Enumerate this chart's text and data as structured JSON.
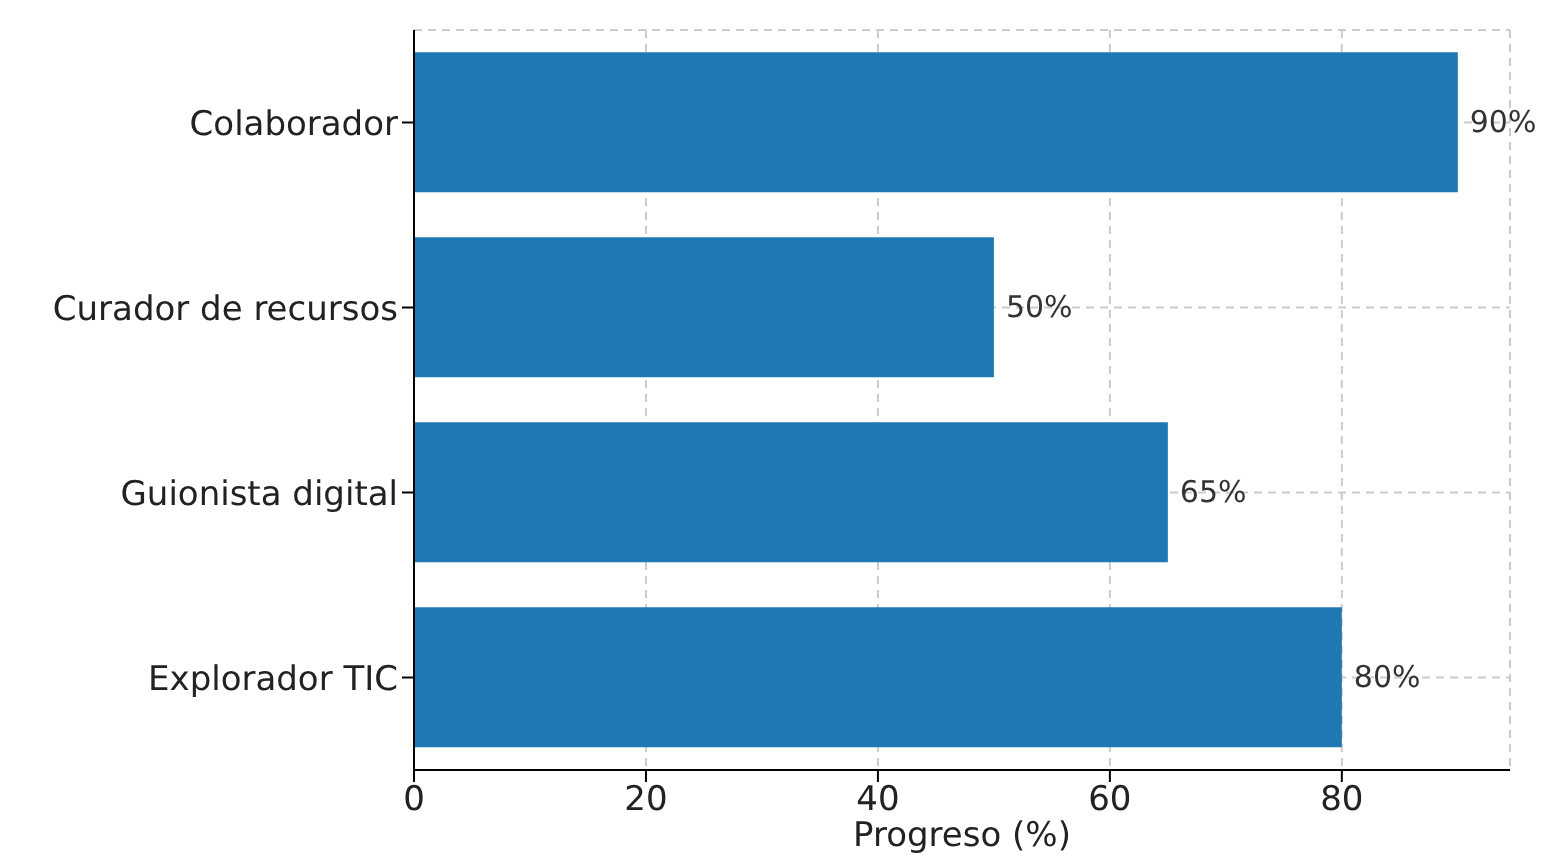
{
  "chart_data": {
    "type": "bar",
    "orientation": "horizontal",
    "xlabel": "Progreso (%)",
    "categories": [
      "Colaborador",
      "Curador de recursos",
      "Guionista digital",
      "Explorador TIC"
    ],
    "values": [
      90,
      50,
      65,
      80
    ],
    "value_labels": [
      "90%",
      "50%",
      "65%",
      "80%"
    ],
    "color": "#1f77b4",
    "xlim": [
      0,
      94.5
    ],
    "xticks": [
      0,
      20,
      40,
      60,
      80
    ],
    "grid": true,
    "line_style": "dashed"
  }
}
